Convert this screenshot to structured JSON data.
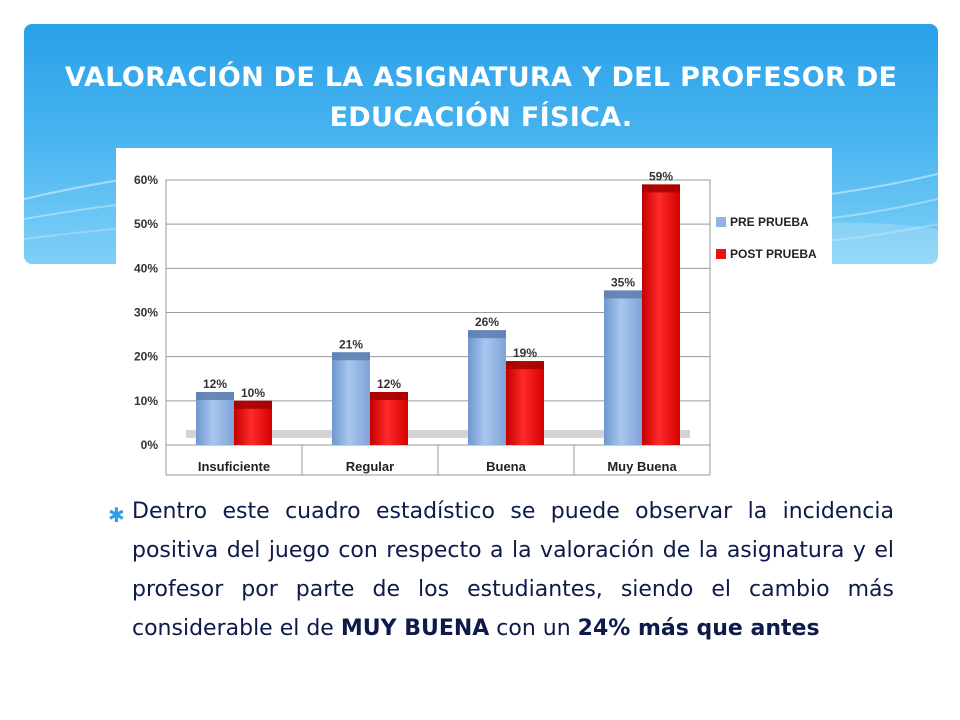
{
  "slide": {
    "title": "VALORACIÓN DE LA ASIGNATURA Y DEL PROFESOR DE EDUCACIÓN FÍSICA.",
    "bullet_glyph": "✱",
    "text_main": "Dentro este cuadro estadístico se puede observar  la incidencia positiva del juego con respecto a la valoración de la asignatura y el profesor por parte de los estudiantes, siendo el cambio más considerable el de ",
    "text_bold1": "MUY BUENA",
    "text_mid": " con un ",
    "text_bold2": "24% más que antes",
    "colors": {
      "header": "#2aa0e8",
      "text": "#0e1a4a",
      "pre": "#8fb4e3",
      "post": "#ee1111"
    }
  },
  "chart_data": {
    "type": "bar",
    "categories": [
      "Insuficiente",
      "Regular",
      "Buena",
      "Muy Buena"
    ],
    "series": [
      {
        "name": "PRE PRUEBA",
        "values": [
          12,
          21,
          26,
          35
        ],
        "labels": [
          "12%",
          "21%",
          "26%",
          "35%"
        ]
      },
      {
        "name": "POST PRUEBA",
        "values": [
          10,
          12,
          19,
          59
        ],
        "labels": [
          "10%",
          "12%",
          "19%",
          "59%"
        ]
      }
    ],
    "yticks": [
      "0%",
      "10%",
      "20%",
      "30%",
      "40%",
      "50%",
      "60%"
    ],
    "ylim": [
      0,
      60
    ],
    "grid": true,
    "legend": "right"
  }
}
